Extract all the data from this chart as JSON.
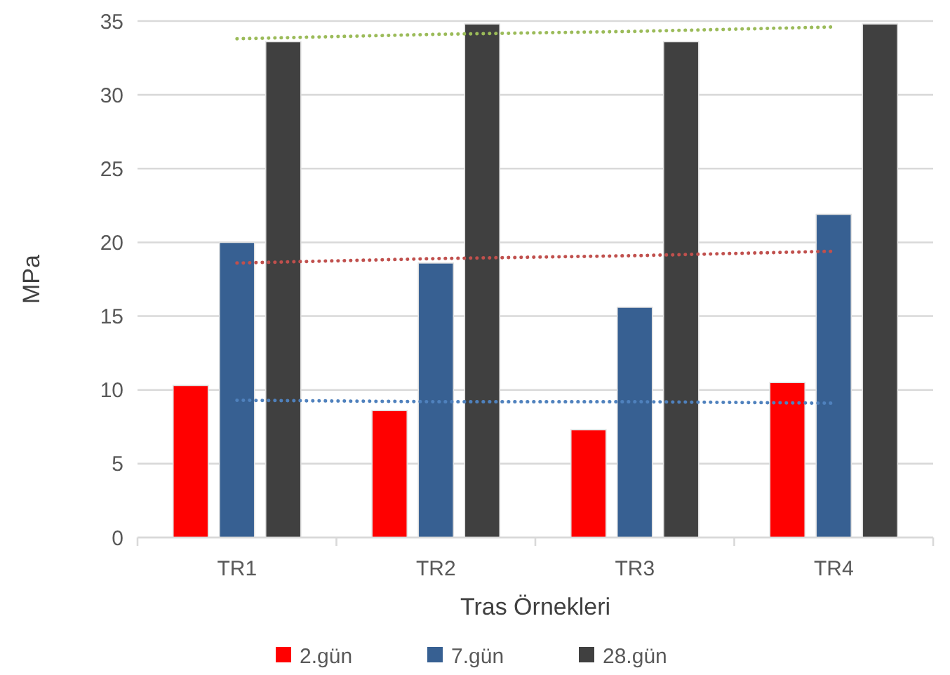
{
  "chart_data": {
    "type": "bar",
    "xlabel": "Tras Örnekleri",
    "ylabel": "MPa",
    "categories": [
      "TR1",
      "TR2",
      "TR3",
      "TR4"
    ],
    "series": [
      {
        "name": "2.gün",
        "color": "#ff0000",
        "values": [
          10.3,
          8.6,
          7.3,
          10.5
        ]
      },
      {
        "name": "7.gün",
        "color": "#376092",
        "values": [
          20.0,
          18.6,
          15.6,
          21.9
        ]
      },
      {
        "name": "28.gün",
        "color": "#404040",
        "values": [
          33.6,
          34.8,
          33.6,
          34.8
        ]
      },
      {
        "type": "line",
        "color": "#9bbb59",
        "line_style": "dotted",
        "values": [
          33.8,
          34.1,
          34.3,
          34.6
        ]
      },
      {
        "type": "line",
        "color": "#c0504d",
        "line_style": "dotted",
        "values": [
          18.6,
          18.9,
          19.1,
          19.4
        ]
      },
      {
        "type": "line",
        "color": "#4f81bd",
        "line_style": "dotted",
        "values": [
          9.3,
          9.2,
          9.2,
          9.1
        ]
      }
    ],
    "ylim": [
      0,
      35
    ],
    "yticks": [
      0,
      5,
      10,
      15,
      20,
      25,
      30,
      35
    ],
    "grid": "y",
    "legend": "bottom"
  }
}
